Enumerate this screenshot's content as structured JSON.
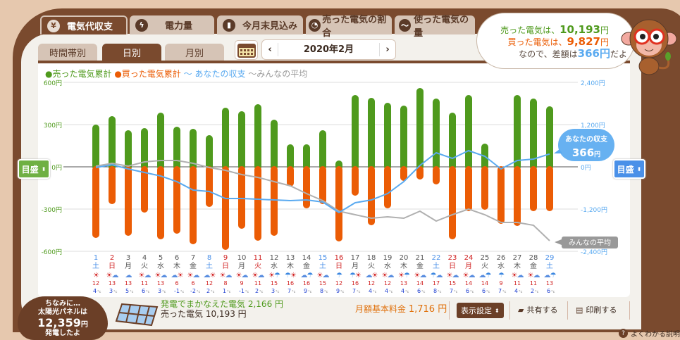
{
  "tabs": [
    {
      "label": "電気代収支",
      "icon": "yen-icon",
      "active": true
    },
    {
      "label": "電力量",
      "icon": "lightning-icon"
    },
    {
      "label": "今月末見込み",
      "icon": "bar-chart-icon"
    },
    {
      "label": "売った電気の割合",
      "icon": "pie-chart-icon"
    },
    {
      "label": "使った電気の量",
      "icon": "wave-icon"
    }
  ],
  "subtabs": [
    {
      "label": "時間帯別"
    },
    {
      "label": "日別",
      "active": true
    },
    {
      "label": "月別"
    }
  ],
  "date_nav": {
    "prev": "‹",
    "value": "2020年2月",
    "next": "›"
  },
  "legend": {
    "sold": "●売った電気累計",
    "bought": "●買った電気累計",
    "yours": "〜 あなたの収支",
    "average": "〜みんなの平均"
  },
  "bubble": {
    "sold_prefix": "売った電気は、",
    "sold_value": "10,193",
    "bought_prefix": "買った電気は、",
    "bought_value": "9,827",
    "yen": "円",
    "diff_prefix": "なので、差額は",
    "diff_value": "366円",
    "diff_suffix": "だよ"
  },
  "scale_button": "目盛",
  "colors": {
    "sold": "#4f9a1d",
    "bought": "#eb5c05",
    "yours": "#5aaaf0",
    "average": "#b0b0b0",
    "brown": "#7a4a2e"
  },
  "chart_data": {
    "type": "bar",
    "left_axis": {
      "ylim": [
        -600,
        600
      ],
      "ticks": [
        "600円",
        "300円",
        "0円",
        "-300円",
        "-600円"
      ],
      "tick_values": [
        600,
        300,
        0,
        -300,
        -600
      ]
    },
    "right_axis": {
      "ylim": [
        -2400,
        2400
      ],
      "ticks": [
        "2,400円",
        "1,200円",
        "0円",
        "-1,200円",
        "-2,400円"
      ],
      "tick_values": [
        2400,
        1200,
        0,
        -1200,
        -2400
      ]
    },
    "grid": true,
    "days": [
      "1",
      "2",
      "3",
      "4",
      "5",
      "6",
      "7",
      "8",
      "9",
      "10",
      "11",
      "12",
      "13",
      "14",
      "15",
      "16",
      "17",
      "18",
      "19",
      "20",
      "21",
      "22",
      "23",
      "24",
      "25",
      "26",
      "27",
      "28",
      "29"
    ],
    "weekdays": [
      "土",
      "日",
      "月",
      "火",
      "水",
      "木",
      "金",
      "土",
      "日",
      "月",
      "火",
      "水",
      "木",
      "金",
      "土",
      "日",
      "月",
      "火",
      "水",
      "木",
      "金",
      "土",
      "日",
      "月",
      "火",
      "水",
      "木",
      "金",
      "土"
    ],
    "day_type": [
      "sat",
      "sun",
      "",
      "",
      "",
      "",
      "",
      "sat",
      "sun",
      "",
      "hol",
      "",
      "",
      "",
      "sat",
      "sun",
      "",
      "",
      "",
      "",
      "",
      "sat",
      "sun",
      "hol",
      "",
      "",
      "",
      "",
      "sat"
    ],
    "series": [
      {
        "name": "売った電気累計",
        "axis": "left",
        "type": "bar",
        "values": [
          300,
          360,
          260,
          275,
          385,
          285,
          270,
          225,
          420,
          395,
          445,
          335,
          160,
          160,
          260,
          45,
          510,
          490,
          455,
          435,
          560,
          485,
          385,
          510,
          165,
          0,
          510,
          485,
          430
        ]
      },
      {
        "name": "買った電気累計",
        "axis": "left",
        "type": "bar",
        "values": [
          -505,
          -265,
          -490,
          -325,
          -515,
          -475,
          -550,
          -285,
          -590,
          -440,
          -525,
          -490,
          -140,
          -295,
          -265,
          -530,
          -205,
          -415,
          -295,
          -100,
          -90,
          -125,
          -515,
          -315,
          -305,
          -405,
          -420,
          -315,
          -315
        ]
      },
      {
        "name": "あなたの収支",
        "axis": "right",
        "type": "line",
        "values": [
          -20,
          60,
          -60,
          -160,
          -260,
          -420,
          -660,
          -700,
          -900,
          -900,
          -920,
          -940,
          -960,
          -940,
          -1000,
          -1300,
          -1020,
          -940,
          -760,
          -420,
          40,
          400,
          240,
          460,
          300,
          -60,
          180,
          220,
          366
        ]
      },
      {
        "name": "みんなの平均",
        "axis": "right",
        "type": "line",
        "values": [
          20,
          100,
          20,
          140,
          180,
          180,
          100,
          -20,
          -100,
          -220,
          -300,
          -420,
          -540,
          -760,
          -960,
          -1260,
          -1360,
          -1460,
          -1420,
          -1460,
          -1260,
          -1540,
          -1360,
          -1200,
          -1360,
          -1580,
          -1580,
          -1660,
          -2100
        ]
      }
    ],
    "annotations": {
      "yours_label": "あなたの収支",
      "yours_value": "366",
      "yours_unit": "円",
      "average_label": "みんなの平均"
    },
    "weather": [
      [
        "sun"
      ],
      [
        "sun",
        "cloud"
      ],
      [
        "cloud"
      ],
      [
        "sun",
        "cloud"
      ],
      [
        "sun",
        "cloud"
      ],
      [
        "cloud",
        "sun"
      ],
      [
        "sun",
        "cloud"
      ],
      [
        "cloud",
        "sun"
      ],
      [
        "sun",
        "cloud"
      ],
      [
        "sun",
        "cloud"
      ],
      [
        "sun",
        "cloud"
      ],
      [
        "sun",
        "rain"
      ],
      [
        "rain",
        "sun"
      ],
      [
        "cloud",
        "rain"
      ],
      [
        "sun",
        "cloud"
      ],
      [
        "rain"
      ],
      [
        "rain",
        "sun"
      ],
      [
        "cloud",
        "sun"
      ],
      [
        "sun",
        "cloud"
      ],
      [
        "sun",
        "rain"
      ],
      [
        "sun",
        "cloud"
      ],
      [
        "rain",
        "cloud"
      ],
      [
        "sun",
        "cloud"
      ],
      [
        "sun",
        "cloud"
      ],
      [
        "cloud",
        "rain"
      ],
      [
        "rain"
      ],
      [
        "sun",
        "cloud"
      ],
      [
        "sun",
        "cloud"
      ],
      [
        "cloud",
        "rain"
      ]
    ],
    "temp_high": [
      12,
      13,
      13,
      11,
      13,
      6,
      6,
      12,
      8,
      9,
      11,
      15,
      16,
      16,
      15,
      12,
      16,
      12,
      12,
      13,
      14,
      17,
      15,
      14,
      14,
      9,
      11,
      11,
      13
    ],
    "temp_low": [
      4,
      3,
      5,
      6,
      3,
      -1,
      -2,
      2,
      1,
      -1,
      2,
      3,
      7,
      9,
      8,
      9,
      7,
      4,
      4,
      4,
      6,
      8,
      7,
      6,
      6,
      7,
      4,
      2,
      6
    ],
    "temp_unit": "°c"
  },
  "solar": {
    "line1": "ちなみに…",
    "line2": "太陽光パネルは",
    "value": "12,359",
    "unit": "円",
    "line3": "発電したよ"
  },
  "footer": {
    "covered_label": "発電でまかなえた電気",
    "covered_value": "2,166 円",
    "sold_label": "売った電気",
    "sold_value": "10,193 円",
    "basic_label": "月額基本料金",
    "basic_value": "1,716 円",
    "display_settings": "表示設定",
    "share": "共有する",
    "print": "印刷する",
    "help": "よくわかる説明"
  }
}
